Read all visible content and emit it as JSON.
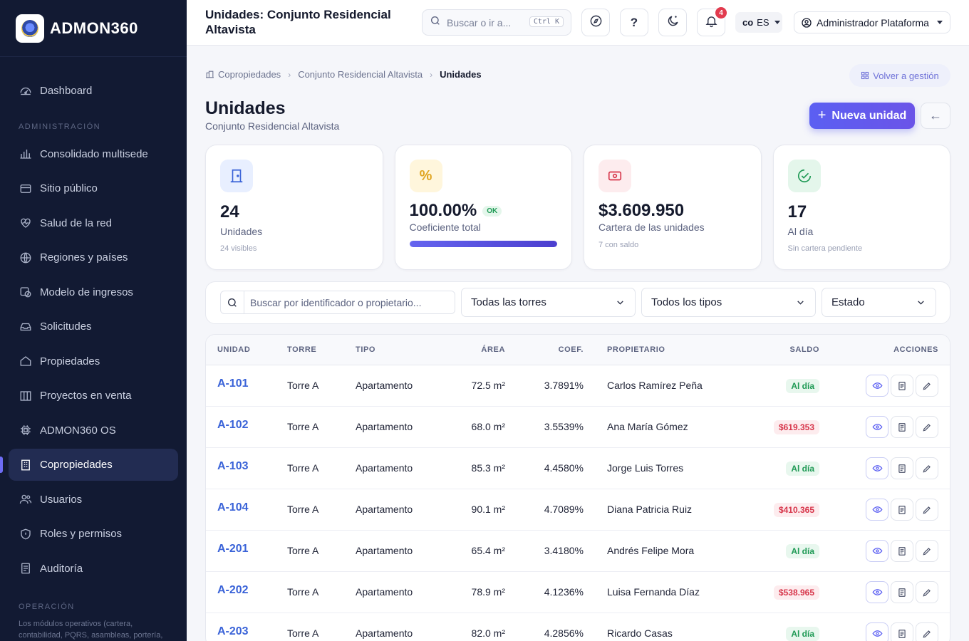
{
  "brand": {
    "name": "ADMON360",
    "logo_icon": "crest-logo"
  },
  "sidebar": {
    "items_top": [
      {
        "label": "Dashboard",
        "icon": "dashboard-gauge-icon"
      }
    ],
    "section_admin": "ADMINISTRACIÓN",
    "items_admin": [
      {
        "label": "Consolidado multisede",
        "icon": "bar-chart-icon"
      },
      {
        "label": "Sitio público",
        "icon": "browser-icon"
      },
      {
        "label": "Salud de la red",
        "icon": "heart-pulse-icon"
      },
      {
        "label": "Regiones y países",
        "icon": "globe-icon"
      },
      {
        "label": "Modelo de ingresos",
        "icon": "revenue-icon"
      },
      {
        "label": "Solicitudes",
        "icon": "inbox-icon"
      },
      {
        "label": "Propiedades",
        "icon": "home-icon"
      },
      {
        "label": "Proyectos en venta",
        "icon": "columns-icon"
      },
      {
        "label": "ADMON360 OS",
        "icon": "chip-icon"
      },
      {
        "label": "Copropiedades",
        "icon": "building-icon",
        "active": true
      },
      {
        "label": "Usuarios",
        "icon": "users-icon"
      },
      {
        "label": "Roles y permisos",
        "icon": "shield-icon"
      },
      {
        "label": "Auditoría",
        "icon": "audit-icon"
      }
    ],
    "section_operation": "OPERACIÓN",
    "note": "Los módulos operativos (cartera, contabilidad, PQRS, asambleas, portería, reservas, documentos, IA...) se"
  },
  "topbar": {
    "title": "Unidades: Conjunto Residencial Altavista",
    "search_placeholder": "Buscar o ir a...",
    "search_shortcut": "Ctrl K",
    "notifications_count": "4",
    "country": "co",
    "language": "ES",
    "user_name": "Administrador Plataforma"
  },
  "breadcrumb": {
    "items": [
      "Copropiedades",
      "Conjunto Residencial Altavista"
    ],
    "current": "Unidades",
    "back_label": "Volver a gestión"
  },
  "page": {
    "title": "Unidades",
    "subtitle": "Conjunto Residencial Altavista",
    "new_button": "Nueva unidad"
  },
  "stats": [
    {
      "value": "24",
      "label": "Unidades",
      "hint": "24 visibles",
      "icon": "door-icon",
      "color": "#3a63d8",
      "bg": "#e8efff"
    },
    {
      "value": "100.00%",
      "badge": "OK",
      "label": "Coeficiente total",
      "progress": 1.0,
      "icon": "percent-icon",
      "color": "#e0a521",
      "bg": "#fff6dc"
    },
    {
      "value": "$3.609.950",
      "label": "Cartera de las unidades",
      "hint": "7 con saldo",
      "icon": "cash-icon",
      "color": "#d7354a",
      "bg": "#fdecee"
    },
    {
      "value": "17",
      "label": "Al día",
      "hint": "Sin cartera pendiente",
      "icon": "check-badge-icon",
      "color": "#1f9a55",
      "bg": "#e4f6eb"
    }
  ],
  "filters": {
    "search_placeholder": "Buscar por identificador o propietario...",
    "tower": "Todas las torres",
    "type": "Todos los tipos",
    "status": "Estado"
  },
  "table": {
    "headers": [
      "UNIDAD",
      "TORRE",
      "TIPO",
      "ÁREA",
      "COEF.",
      "PROPIETARIO",
      "SALDO",
      "ACCIONES"
    ],
    "rows": [
      {
        "unit": "A-101",
        "tower": "Torre A",
        "type": "Apartamento",
        "area": "72.5 m²",
        "coef": "3.7891%",
        "owner": "Carlos Ramírez Peña",
        "balance": "Al día",
        "status": "ok"
      },
      {
        "unit": "A-102",
        "tower": "Torre A",
        "type": "Apartamento",
        "area": "68.0 m²",
        "coef": "3.5539%",
        "owner": "Ana María Gómez",
        "balance": "$619.353",
        "status": "due"
      },
      {
        "unit": "A-103",
        "tower": "Torre A",
        "type": "Apartamento",
        "area": "85.3 m²",
        "coef": "4.4580%",
        "owner": "Jorge Luis Torres",
        "balance": "Al día",
        "status": "ok"
      },
      {
        "unit": "A-104",
        "tower": "Torre A",
        "type": "Apartamento",
        "area": "90.1 m²",
        "coef": "4.7089%",
        "owner": "Diana Patricia Ruiz",
        "balance": "$410.365",
        "status": "due"
      },
      {
        "unit": "A-201",
        "tower": "Torre A",
        "type": "Apartamento",
        "area": "65.4 m²",
        "coef": "3.4180%",
        "owner": "Andrés Felipe Mora",
        "balance": "Al día",
        "status": "ok"
      },
      {
        "unit": "A-202",
        "tower": "Torre A",
        "type": "Apartamento",
        "area": "78.9 m²",
        "coef": "4.1236%",
        "owner": "Luisa Fernanda Díaz",
        "balance": "$538.965",
        "status": "due"
      },
      {
        "unit": "A-203",
        "tower": "Torre A",
        "type": "Apartamento",
        "area": "82.0 m²",
        "coef": "4.2856%",
        "owner": "Ricardo Casas",
        "balance": "Al día",
        "status": "ok"
      }
    ]
  }
}
